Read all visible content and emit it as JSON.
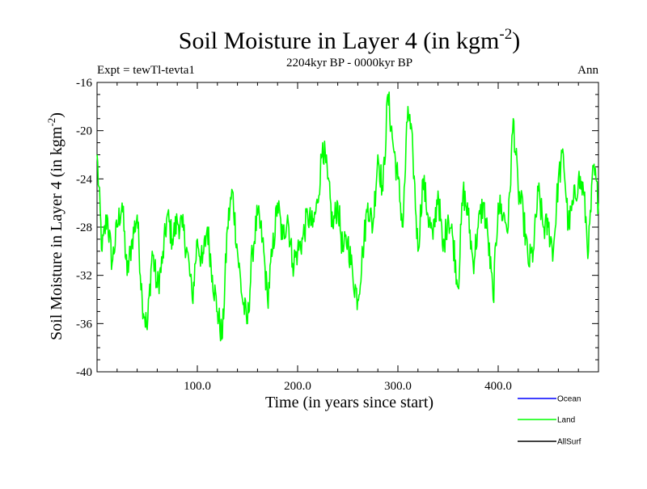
{
  "chart_data": {
    "type": "line",
    "title": "Soil Moisture in Layer 4 (in kgm",
    "title_superscript": "-2",
    "title_suffix": ")",
    "subtitle": "2204kyr BP - 0000kyr BP",
    "left_label": "Expt = tewTl-tevta1",
    "right_label": "Ann",
    "xlabel": "Time (in years since start)",
    "ylabel": "Soil Moisture in Layer 4 (in kgm",
    "ylabel_superscript": "-2",
    "ylabel_suffix": ")",
    "xlim": [
      0,
      500
    ],
    "ylim": [
      -40,
      -16
    ],
    "xticks": [
      100,
      200,
      300,
      400
    ],
    "xtick_labels": [
      "100.0",
      "200.0",
      "300.0",
      "400.0"
    ],
    "yticks": [
      -16,
      -20,
      -24,
      -28,
      -32,
      -36,
      -40
    ],
    "ytick_labels": [
      "-16",
      "-20",
      "-24",
      "-28",
      "-32",
      "-36",
      "-40"
    ],
    "legend": [
      {
        "name": "Ocean",
        "color": "#0000ff"
      },
      {
        "name": "Land",
        "color": "#00ff00"
      },
      {
        "name": "AllSurf",
        "color": "#000000"
      }
    ],
    "series": [
      {
        "name": "Land",
        "color": "#00ff00",
        "x": [
          0,
          5,
          10,
          15,
          20,
          25,
          30,
          35,
          40,
          45,
          50,
          55,
          60,
          65,
          70,
          75,
          80,
          85,
          90,
          95,
          100,
          105,
          110,
          115,
          120,
          125,
          130,
          135,
          140,
          145,
          150,
          155,
          160,
          165,
          170,
          175,
          180,
          185,
          190,
          195,
          200,
          205,
          210,
          215,
          220,
          225,
          230,
          235,
          240,
          245,
          250,
          255,
          260,
          265,
          270,
          275,
          280,
          285,
          290,
          295,
          300,
          305,
          310,
          315,
          320,
          325,
          330,
          335,
          340,
          345,
          350,
          355,
          360,
          365,
          370,
          375,
          380,
          385,
          390,
          395,
          400,
          405,
          410,
          415,
          420,
          425,
          430,
          435,
          440,
          445,
          450,
          455,
          460,
          465,
          470,
          475,
          480,
          485,
          490,
          495,
          500
        ],
        "values": [
          -22,
          -30,
          -27,
          -31,
          -28,
          -26,
          -32,
          -29,
          -27,
          -34,
          -36.5,
          -30,
          -33,
          -31,
          -27,
          -29,
          -27.5,
          -28,
          -30,
          -34,
          -29,
          -31,
          -28,
          -32,
          -35,
          -37.2,
          -28,
          -25,
          -30,
          -34,
          -36,
          -30,
          -27,
          -29,
          -34,
          -30,
          -26,
          -29,
          -27,
          -31,
          -30,
          -29,
          -27,
          -28,
          -26,
          -21,
          -24,
          -28,
          -26,
          -30,
          -29,
          -32,
          -34,
          -30,
          -26,
          -28,
          -22,
          -25,
          -17,
          -21,
          -24,
          -28,
          -18,
          -22,
          -30,
          -24,
          -27,
          -29,
          -25,
          -30,
          -27,
          -29,
          -33,
          -25,
          -27,
          -31,
          -28,
          -26,
          -29,
          -34,
          -26,
          -27,
          -28,
          -19,
          -25,
          -27,
          -31,
          -30,
          -25,
          -28,
          -28,
          -30,
          -24,
          -22,
          -28,
          -26,
          -24,
          -25,
          -30,
          -23,
          -26
        ]
      }
    ]
  }
}
